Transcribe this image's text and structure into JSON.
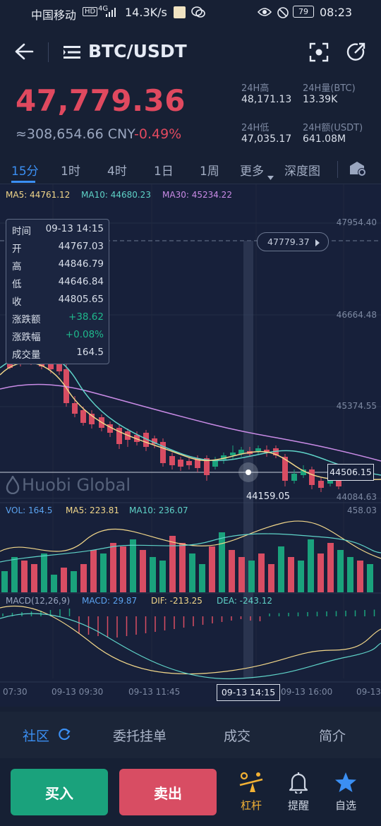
{
  "status_bar": {
    "carrier": "中国移动",
    "network": "4G",
    "speed": "14.3K/s",
    "battery": "79",
    "time": "08:23"
  },
  "header": {
    "pair": "BTC/USDT"
  },
  "ticker": {
    "last_price": "47,779.36",
    "cny_price": "≈308,654.66 CNY",
    "change_pct": "-0.49%",
    "high_label": "24H高",
    "high_value": "48,171.13",
    "vol_btc_label": "24H量(BTC)",
    "vol_btc_value": "13.39K",
    "low_label": "24H低",
    "low_value": "47,035.17",
    "vol_usdt_label": "24H额(USDT)",
    "vol_usdt_value": "641.08M"
  },
  "intervals": [
    "15分",
    "1时",
    "4时",
    "1日",
    "1周",
    "更多",
    "深度图"
  ],
  "active_interval": "15分",
  "ma": {
    "ma5": "MA5: 44761.12",
    "ma10": "MA10: 44680.23",
    "ma30": "MA30: 45234.22"
  },
  "tooltip": {
    "time_label": "时间",
    "time": "09-13 14:15",
    "open_label": "开",
    "open": "44767.03",
    "high_label": "高",
    "high": "44846.79",
    "low_label": "低",
    "low": "44646.84",
    "close_label": "收",
    "close": "44805.65",
    "chg_label": "涨跌额",
    "chg": "+38.62",
    "chgp_label": "涨跌幅",
    "chgp": "+0.08%",
    "vol_label": "成交量",
    "vol": "164.5"
  },
  "price_axis": {
    "p1": "47954.40",
    "p2": "46664.48",
    "p3": "45374.55",
    "p4": "44084.63",
    "current_tag": "47779.37",
    "crosshair_tag": "44506.15",
    "low_marker": "44159.05",
    "partial_label": "00"
  },
  "watermark": "Huobi Global",
  "volume": {
    "vol": "VOL: 164.5",
    "ma5": "MA5: 223.81",
    "ma10": "MA10: 236.07",
    "max": "458.03"
  },
  "macd": {
    "params": "MACD(12,26,9)",
    "macd": "MACD: 29.87",
    "dif": "DIF: -213.25",
    "dea": "DEA: -243.12"
  },
  "time_axis": {
    "t1": "07:30",
    "t2": "09-13 09:30",
    "t3": "09-13 11:45",
    "t4": "09-13 14:15",
    "t5": "09-13 16:00",
    "t6": "09-13"
  },
  "bottom_tabs": [
    "社区",
    "委托挂单",
    "成交",
    "简介"
  ],
  "actions": {
    "buy": "买入",
    "sell": "卖出",
    "leverage": "杠杆",
    "alert": "提醒",
    "favorite": "自选"
  },
  "colors": {
    "up": "#1aa27c",
    "down": "#d84d63",
    "accent": "#3b8ff3",
    "background": "#172034"
  }
}
